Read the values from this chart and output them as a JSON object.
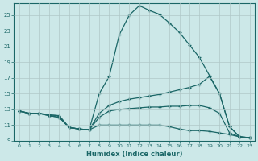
{
  "xlabel": "Humidex (Indice chaleur)",
  "ylabel": "",
  "background_color": "#cce8e8",
  "line_color": "#1a6666",
  "grid_color": "#b0c8c8",
  "xlim": [
    -0.5,
    23.5
  ],
  "ylim": [
    9,
    26.5
  ],
  "xticks": [
    0,
    1,
    2,
    3,
    4,
    5,
    6,
    7,
    8,
    9,
    10,
    11,
    12,
    13,
    14,
    15,
    16,
    17,
    18,
    19,
    20,
    21,
    22,
    23
  ],
  "yticks": [
    9,
    11,
    13,
    15,
    17,
    19,
    21,
    23,
    25
  ],
  "lines": [
    {
      "x": [
        0,
        1,
        2,
        3,
        4,
        5,
        6,
        7,
        8,
        9,
        10,
        11,
        12,
        13,
        14,
        15,
        16,
        17,
        18,
        19,
        20,
        21,
        22,
        23
      ],
      "y": [
        12.8,
        12.5,
        12.5,
        12.3,
        12.2,
        10.7,
        10.5,
        10.4,
        15.0,
        17.2,
        22.5,
        25.0,
        26.2,
        25.6,
        25.1,
        24.0,
        22.8,
        21.2,
        19.6,
        17.3,
        15.0,
        10.8,
        9.5,
        9.4
      ]
    },
    {
      "x": [
        0,
        1,
        2,
        3,
        4,
        5,
        6,
        7,
        8,
        9,
        10,
        11,
        12,
        13,
        14,
        15,
        16,
        17,
        18,
        19,
        20,
        21,
        22,
        23
      ],
      "y": [
        12.8,
        12.5,
        12.5,
        12.3,
        12.2,
        10.7,
        10.5,
        10.4,
        12.5,
        13.5,
        14.0,
        14.3,
        14.5,
        14.7,
        14.9,
        15.2,
        15.5,
        15.8,
        16.2,
        17.2,
        15.0,
        10.8,
        9.5,
        9.4
      ]
    },
    {
      "x": [
        0,
        1,
        2,
        3,
        4,
        5,
        6,
        7,
        8,
        9,
        10,
        11,
        12,
        13,
        14,
        15,
        16,
        17,
        18,
        19,
        20,
        21,
        22,
        23
      ],
      "y": [
        12.8,
        12.5,
        12.5,
        12.2,
        12.0,
        10.7,
        10.5,
        10.4,
        12.0,
        12.8,
        13.0,
        13.1,
        13.2,
        13.3,
        13.3,
        13.4,
        13.4,
        13.5,
        13.5,
        13.2,
        12.5,
        10.0,
        9.5,
        9.4
      ]
    },
    {
      "x": [
        0,
        1,
        2,
        3,
        4,
        5,
        6,
        7,
        8,
        9,
        10,
        11,
        12,
        13,
        14,
        15,
        16,
        17,
        18,
        19,
        20,
        21,
        22,
        23
      ],
      "y": [
        12.8,
        12.5,
        12.5,
        12.2,
        12.0,
        10.7,
        10.5,
        10.4,
        11.0,
        11.0,
        11.0,
        11.0,
        11.0,
        11.0,
        11.0,
        10.8,
        10.5,
        10.3,
        10.3,
        10.2,
        10.0,
        9.8,
        9.5,
        9.4
      ]
    }
  ]
}
